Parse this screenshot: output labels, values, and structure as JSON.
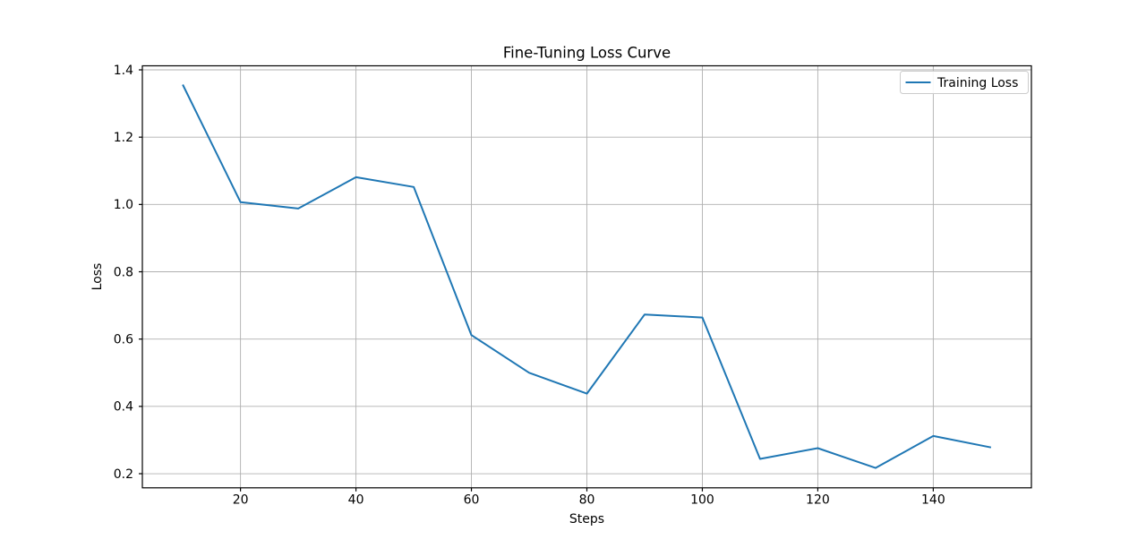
{
  "figure": {
    "background": "#ffffff"
  },
  "chart_data": {
    "type": "line",
    "title": "Fine-Tuning Loss Curve",
    "xlabel": "Steps",
    "ylabel": "Loss",
    "x": [
      10,
      20,
      30,
      40,
      50,
      60,
      70,
      80,
      90,
      100,
      110,
      120,
      130,
      140,
      150
    ],
    "series": [
      {
        "name": "Training Loss",
        "color": "#1f77b4",
        "values": [
          1.356,
          1.007,
          0.988,
          1.081,
          1.052,
          0.612,
          0.5,
          0.438,
          0.673,
          0.664,
          0.244,
          0.276,
          0.217,
          0.312,
          0.278
        ]
      }
    ],
    "xlim": [
      3,
      157
    ],
    "ylim": [
      0.158,
      1.412
    ],
    "xticks": [
      20,
      40,
      60,
      80,
      100,
      120,
      140
    ],
    "yticks": [
      0.2,
      0.4,
      0.6,
      0.8,
      1.0,
      1.2,
      1.4
    ],
    "grid": true,
    "grid_color": "#b0b0b0",
    "spine_color": "#000000",
    "legend": {
      "position": "upper right",
      "entries": [
        {
          "label": "Training Loss",
          "color": "#1f77b4"
        }
      ]
    }
  }
}
